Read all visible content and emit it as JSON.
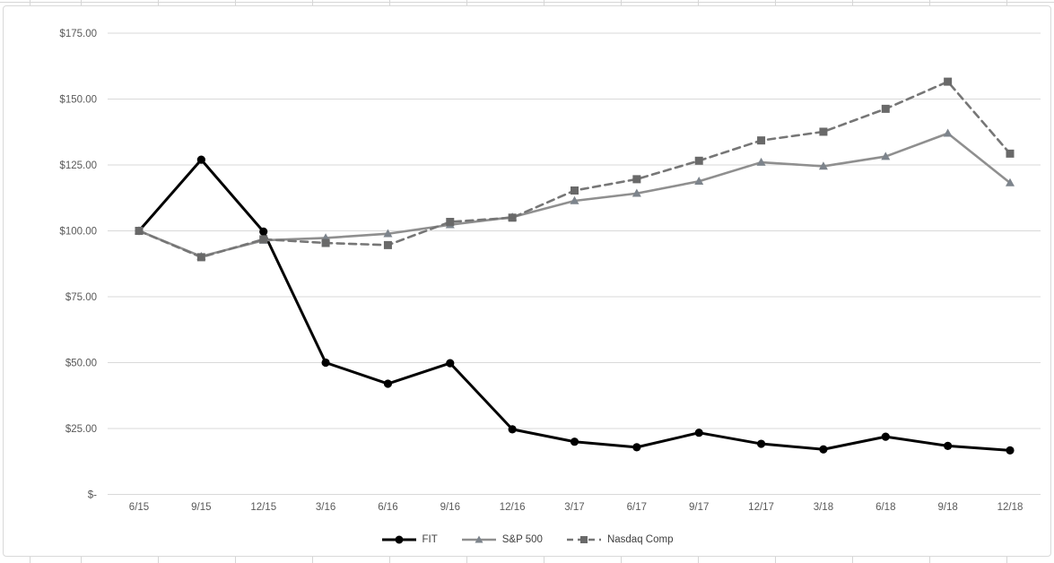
{
  "chart_data": {
    "type": "line",
    "title": "",
    "xlabel": "",
    "ylabel": "",
    "categories": [
      "6/15",
      "9/15",
      "12/15",
      "3/16",
      "6/16",
      "9/16",
      "12/16",
      "3/17",
      "6/17",
      "9/17",
      "12/17",
      "3/18",
      "6/18",
      "9/18",
      "12/18"
    ],
    "series": [
      {
        "name": "FIT",
        "line_color": "#000000",
        "marker_color": "#000000",
        "marker": "circle",
        "dash": "solid",
        "values": [
          100,
          127.0,
          99.7,
          50.0,
          42.0,
          49.8,
          24.7,
          20.0,
          17.9,
          23.4,
          19.2,
          17.1,
          21.9,
          18.4,
          16.7
        ]
      },
      {
        "name": "S&P 500",
        "line_color": "#8f8f8f",
        "marker_color": "#7d848c",
        "marker": "triangle",
        "dash": "solid",
        "values": [
          100,
          90.3,
          96.4,
          97.3,
          98.9,
          102.3,
          105.2,
          111.4,
          114.2,
          118.8,
          126.0,
          124.5,
          128.2,
          137.0,
          118.2
        ]
      },
      {
        "name": "Nasdaq Comp",
        "line_color": "#767676",
        "marker_color": "#696969",
        "marker": "square",
        "dash": "dashed",
        "values": [
          100,
          90.0,
          96.8,
          95.4,
          94.6,
          103.4,
          105.0,
          115.3,
          119.6,
          126.6,
          134.3,
          137.6,
          146.3,
          156.6,
          129.3
        ]
      }
    ],
    "y_ticks": [
      {
        "label": "$-",
        "value": 0
      },
      {
        "label": "$25.00",
        "value": 25
      },
      {
        "label": "$50.00",
        "value": 50
      },
      {
        "label": "$75.00",
        "value": 75
      },
      {
        "label": "$100.00",
        "value": 100
      },
      {
        "label": "$125.00",
        "value": 125
      },
      {
        "label": "$150.00",
        "value": 150
      },
      {
        "label": "$175.00",
        "value": 175
      }
    ],
    "ylim": [
      0,
      187
    ],
    "grid": "horizontal",
    "grid_color": "#d9d9d9",
    "legend_position": "bottom"
  }
}
